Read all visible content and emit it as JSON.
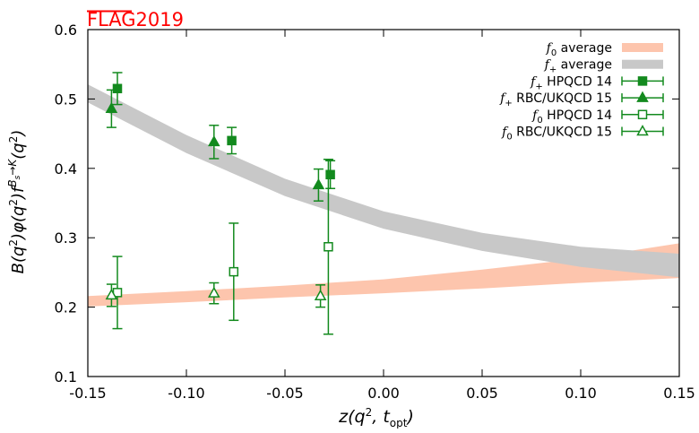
{
  "watermark": {
    "prefix": "FLAG",
    "year": "2019",
    "color": "#ff0000"
  },
  "chart_data": {
    "type": "scatter",
    "title": "",
    "xlabel": "z(q², t_opt)",
    "ylabel": "B(q²)φ(q²)f^{B_s→K}(q²)",
    "xlim": [
      -0.15,
      0.15
    ],
    "ylim": [
      0.1,
      0.6
    ],
    "xticks": [
      -0.15,
      -0.1,
      -0.05,
      0.0,
      0.05,
      0.1,
      0.15
    ],
    "xtick_labels": [
      "-0.15",
      "-0.10",
      "-0.05",
      "0.00",
      "0.05",
      "0.10",
      "0.15"
    ],
    "yticks": [
      0.1,
      0.2,
      0.3,
      0.4,
      0.5,
      0.6
    ],
    "ytick_labels": [
      "0.1",
      "0.2",
      "0.3",
      "0.4",
      "0.5",
      "0.6"
    ],
    "grid": false,
    "legend_position": "top-right",
    "bands": [
      {
        "name": "f0 average",
        "legend_main": "f",
        "legend_sub": "0",
        "legend_rest": " average",
        "color": "#fdc5ad",
        "x": [
          -0.15,
          -0.1,
          -0.05,
          0.0,
          0.05,
          0.1,
          0.15
        ],
        "lower": [
          0.201,
          0.207,
          0.214,
          0.22,
          0.227,
          0.235,
          0.242
        ],
        "upper": [
          0.216,
          0.223,
          0.231,
          0.24,
          0.254,
          0.27,
          0.292
        ]
      },
      {
        "name": "f+ average",
        "legend_main": "f",
        "legend_sub": "+",
        "legend_rest": " average",
        "color": "#c8c8c8",
        "x": [
          -0.15,
          -0.1,
          -0.05,
          0.0,
          0.05,
          0.1,
          0.15
        ],
        "lower": [
          0.495,
          0.422,
          0.36,
          0.313,
          0.281,
          0.258,
          0.243
        ],
        "upper": [
          0.521,
          0.448,
          0.385,
          0.338,
          0.307,
          0.287,
          0.277
        ]
      }
    ],
    "series": [
      {
        "name": "f+ HPQCD 14",
        "legend_main": "f",
        "legend_sub": "+",
        "legend_rest": " HPQCD 14",
        "marker": "square",
        "filled": true,
        "color": "#138a1e",
        "points": [
          {
            "x": -0.135,
            "y": 0.515,
            "err": 0.023
          },
          {
            "x": -0.077,
            "y": 0.44,
            "err": 0.019
          },
          {
            "x": -0.027,
            "y": 0.391,
            "err": 0.02
          }
        ]
      },
      {
        "name": "f+ RBC/UKQCD 15",
        "legend_main": "f",
        "legend_sub": "+",
        "legend_rest": " RBC/UKQCD 15",
        "marker": "triangle",
        "filled": true,
        "color": "#138a1e",
        "points": [
          {
            "x": -0.138,
            "y": 0.486,
            "err": 0.027
          },
          {
            "x": -0.086,
            "y": 0.438,
            "err": 0.024
          },
          {
            "x": -0.033,
            "y": 0.376,
            "err": 0.023
          }
        ]
      },
      {
        "name": "f0 HPQCD 14",
        "legend_main": "f",
        "legend_sub": "0",
        "legend_rest": " HPQCD 14",
        "marker": "square",
        "filled": false,
        "color": "#138a1e",
        "points": [
          {
            "x": -0.135,
            "y": 0.221,
            "err": 0.052
          },
          {
            "x": -0.076,
            "y": 0.251,
            "err": 0.07
          },
          {
            "x": -0.028,
            "y": 0.287,
            "err": 0.126
          }
        ]
      },
      {
        "name": "f0 RBC/UKQCD 15",
        "legend_main": "f",
        "legend_sub": "0",
        "legend_rest": " RBC/UKQCD 15",
        "marker": "triangle",
        "filled": false,
        "color": "#138a1e",
        "points": [
          {
            "x": -0.138,
            "y": 0.217,
            "err": 0.016
          },
          {
            "x": -0.086,
            "y": 0.22,
            "err": 0.015
          },
          {
            "x": -0.032,
            "y": 0.216,
            "err": 0.016
          }
        ]
      }
    ]
  }
}
